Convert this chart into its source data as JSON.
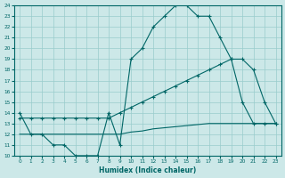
{
  "xlabel": "Humidex (Indice chaleur)",
  "xlim": [
    -0.5,
    23.5
  ],
  "ylim": [
    10,
    24
  ],
  "xticks": [
    0,
    1,
    2,
    3,
    4,
    5,
    6,
    7,
    8,
    9,
    10,
    11,
    12,
    13,
    14,
    15,
    16,
    17,
    18,
    19,
    20,
    21,
    22,
    23
  ],
  "yticks": [
    10,
    11,
    12,
    13,
    14,
    15,
    16,
    17,
    18,
    19,
    20,
    21,
    22,
    23,
    24
  ],
  "bg_color": "#cce8e8",
  "line_color": "#006666",
  "grid_color": "#99cccc",
  "curve1_x": [
    0,
    1,
    2,
    3,
    4,
    5,
    6,
    7,
    8,
    9,
    10,
    11,
    12,
    13,
    14,
    15,
    16,
    17,
    18,
    19,
    20,
    21,
    22,
    23
  ],
  "curve1_y": [
    14,
    12,
    12,
    11,
    11,
    10,
    10,
    10,
    14,
    11,
    19,
    20,
    22,
    23,
    24,
    24,
    23,
    23,
    21,
    19,
    15,
    13,
    13,
    13
  ],
  "curve2_x": [
    0,
    1,
    2,
    3,
    4,
    5,
    6,
    7,
    8,
    9,
    10,
    11,
    12,
    13,
    14,
    15,
    16,
    17,
    18,
    19,
    20,
    21,
    22,
    23
  ],
  "curve2_y": [
    13.5,
    13.5,
    13.5,
    13.5,
    13.5,
    13.5,
    13.5,
    13.5,
    13.5,
    14,
    14.5,
    15,
    15.5,
    16,
    16.5,
    17,
    17.5,
    18,
    18.5,
    19,
    19,
    18,
    15,
    13
  ],
  "curve3_x": [
    0,
    1,
    2,
    3,
    4,
    5,
    6,
    7,
    8,
    9,
    10,
    11,
    12,
    13,
    14,
    15,
    16,
    17,
    18,
    19,
    20,
    21,
    22,
    23
  ],
  "curve3_y": [
    12,
    12,
    12,
    12,
    12,
    12,
    12,
    12,
    12,
    12,
    12.2,
    12.3,
    12.5,
    12.6,
    12.7,
    12.8,
    12.9,
    13,
    13,
    13,
    13,
    13,
    13,
    13
  ]
}
